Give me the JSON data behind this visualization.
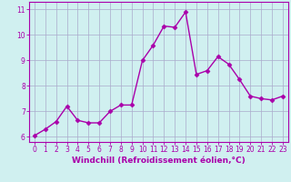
{
  "x": [
    0,
    1,
    2,
    3,
    4,
    5,
    6,
    7,
    8,
    9,
    10,
    11,
    12,
    13,
    14,
    15,
    16,
    17,
    18,
    19,
    20,
    21,
    22,
    23
  ],
  "y": [
    6.05,
    6.3,
    6.6,
    7.2,
    6.65,
    6.55,
    6.55,
    7.0,
    7.25,
    7.25,
    9.0,
    9.6,
    10.35,
    10.3,
    10.9,
    8.45,
    8.6,
    9.15,
    8.85,
    8.25,
    7.6,
    7.5,
    7.45,
    7.6
  ],
  "line_color": "#aa00aa",
  "marker": "D",
  "markersize": 2.5,
  "linewidth": 1.0,
  "bg_color": "#d0f0f0",
  "grid_color": "#aaaacc",
  "xlabel": "Windchill (Refroidissement éolien,°C)",
  "xlabel_color": "#aa00aa",
  "xlim": [
    -0.5,
    23.5
  ],
  "ylim": [
    5.8,
    11.3
  ],
  "yticks": [
    6,
    7,
    8,
    9,
    10,
    11
  ],
  "xticks": [
    0,
    1,
    2,
    3,
    4,
    5,
    6,
    7,
    8,
    9,
    10,
    11,
    12,
    13,
    14,
    15,
    16,
    17,
    18,
    19,
    20,
    21,
    22,
    23
  ],
  "tick_color": "#aa00aa",
  "tick_labelsize": 5.5,
  "xlabel_fontsize": 6.5,
  "spine_color": "#aa00aa"
}
